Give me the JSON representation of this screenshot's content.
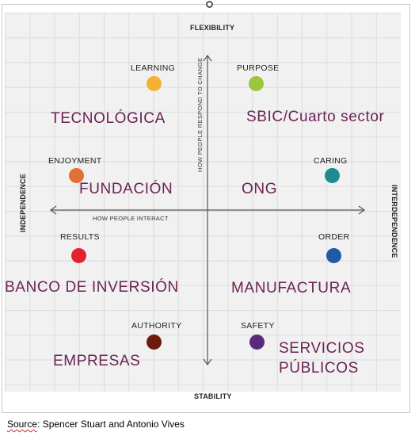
{
  "axes": {
    "top": "FLEXIBILITY",
    "bottom": "STABILITY",
    "left": "INDEPENDENCE",
    "right": "INTERDEPENDENCE",
    "vertical_caption": "HOW PEOPLE RESPOND TO CHANGE",
    "horizontal_caption": "HOW PEOPLE INTERACT"
  },
  "values": [
    {
      "label": "LEARNING",
      "color": "#f2b233"
    },
    {
      "label": "PURPOSE",
      "color": "#9cc63b"
    },
    {
      "label": "ENJOYMENT",
      "color": "#e07033"
    },
    {
      "label": "CARING",
      "color": "#1f8b91"
    },
    {
      "label": "RESULTS",
      "color": "#e4232e"
    },
    {
      "label": "ORDER",
      "color": "#1f5aa6"
    },
    {
      "label": "AUTHORITY",
      "color": "#6e1a0e"
    },
    {
      "label": "SAFETY",
      "color": "#5a2a7c"
    }
  ],
  "sectors": {
    "tecnologica": "TECNOLÓGICA",
    "sbic": "SBIC/Cuarto sector",
    "fundacion": "FUNDACIÓN",
    "ong": "ONG",
    "banco": "BANCO DE INVERSIÓN",
    "manufactura": "MANUFACTURA",
    "empresas": "EMPRESAS",
    "servicios_1": "SERVICIOS",
    "servicios_2": "PÚBLICOS"
  },
  "source": {
    "label": "Source",
    "text": ": Spencer Stuart and Antonio Vives"
  }
}
